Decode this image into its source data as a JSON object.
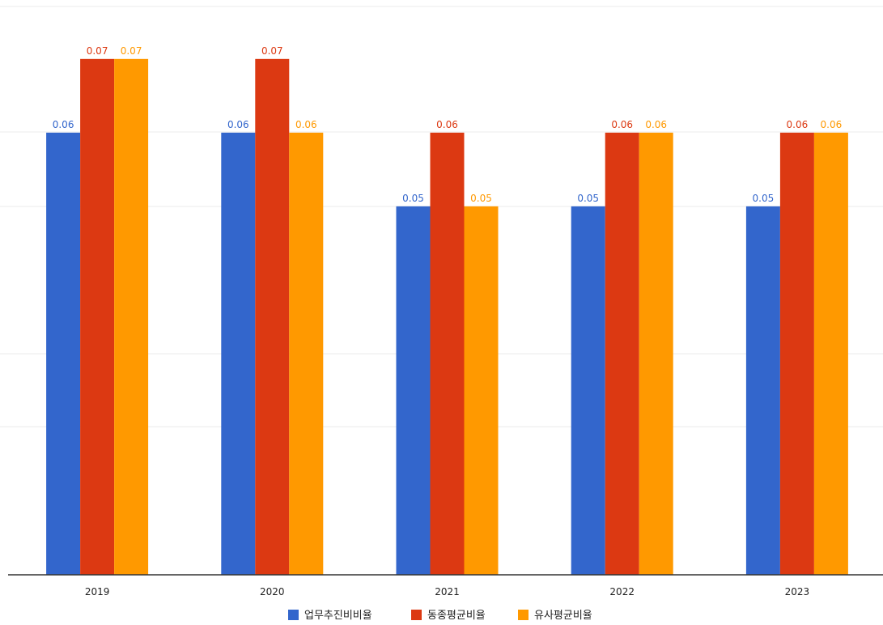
{
  "chart_data": {
    "type": "bar",
    "title": "",
    "xlabel": "",
    "ylabel": "",
    "ylim": [
      0,
      0.078
    ],
    "grid": true,
    "legend_position": "bottom",
    "categories": [
      "2019",
      "2020",
      "2021",
      "2022",
      "2023"
    ],
    "series": [
      {
        "name": "업무추진비비율",
        "color": "#3366cc",
        "values": [
          0.06,
          0.06,
          0.05,
          0.05,
          0.05
        ],
        "labels": [
          "0.06",
          "0.06",
          "0.05",
          "0.05",
          "0.05"
        ]
      },
      {
        "name": "동종평균비율",
        "color": "#dc3912",
        "values": [
          0.07,
          0.07,
          0.06,
          0.06,
          0.06
        ],
        "labels": [
          "0.07",
          "0.07",
          "0.06",
          "0.06",
          "0.06"
        ]
      },
      {
        "name": "유사평균비율",
        "color": "#ff9900",
        "values": [
          0.07,
          0.06,
          0.05,
          0.06,
          0.06
        ],
        "labels": [
          "0.07",
          "0.06",
          "0.05",
          "0.06",
          "0.06"
        ]
      }
    ]
  }
}
